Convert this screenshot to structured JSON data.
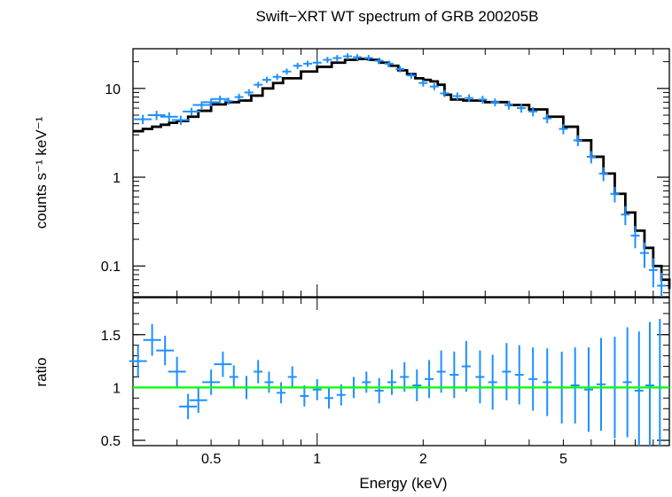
{
  "chart_data": [
    {
      "panel": "spectrum",
      "type": "scatter",
      "title": "Swift−XRT WT spectrum of GRB 200205B",
      "ylabel": "counts s⁻¹ keV⁻¹",
      "xscale": "log",
      "yscale": "log",
      "xlim": [
        0.3,
        10
      ],
      "ylim": [
        0.045,
        28
      ],
      "yticks": [
        {
          "value": 10,
          "label": "10"
        },
        {
          "value": 1,
          "label": "1"
        },
        {
          "value": 0.1,
          "label": "0.1"
        }
      ],
      "series": [
        {
          "type": "errorbar",
          "color": "#1e90ff",
          "x": [
            0.32,
            0.35,
            0.38,
            0.41,
            0.44,
            0.47,
            0.5,
            0.53,
            0.56,
            0.6,
            0.64,
            0.68,
            0.72,
            0.77,
            0.82,
            0.88,
            0.94,
            1.0,
            1.07,
            1.14,
            1.22,
            1.3,
            1.4,
            1.5,
            1.6,
            1.72,
            1.85,
            2.0,
            2.15,
            2.3,
            2.5,
            2.7,
            2.95,
            3.2,
            3.5,
            3.8,
            4.1,
            4.5,
            5.0,
            5.5,
            6.0,
            6.5,
            7.0,
            7.5,
            8.0,
            8.5,
            9.0,
            9.5
          ],
          "y": [
            4.5,
            5.0,
            4.8,
            4.4,
            5.5,
            6.5,
            7.0,
            7.6,
            7.2,
            8.0,
            9.0,
            11.0,
            12.5,
            13.5,
            15.5,
            18.0,
            19.0,
            19.5,
            21.0,
            22.0,
            23.0,
            22.5,
            22.0,
            20.5,
            19.0,
            16.5,
            14.0,
            11.5,
            10.5,
            8.8,
            8.2,
            7.8,
            7.5,
            7.0,
            6.5,
            6.0,
            5.5,
            4.6,
            3.5,
            2.6,
            1.7,
            1.1,
            0.65,
            0.38,
            0.22,
            0.14,
            0.09,
            0.06
          ],
          "yerr_frac": [
            0.12,
            0.12,
            0.12,
            0.12,
            0.1,
            0.1,
            0.1,
            0.09,
            0.09,
            0.09,
            0.09,
            0.08,
            0.08,
            0.08,
            0.08,
            0.08,
            0.08,
            0.08,
            0.08,
            0.08,
            0.08,
            0.08,
            0.08,
            0.08,
            0.08,
            0.08,
            0.08,
            0.09,
            0.09,
            0.09,
            0.1,
            0.1,
            0.1,
            0.1,
            0.11,
            0.11,
            0.12,
            0.12,
            0.13,
            0.14,
            0.16,
            0.18,
            0.2,
            0.24,
            0.28,
            0.32,
            0.36,
            0.4
          ]
        },
        {
          "type": "model-step",
          "color": "#000000",
          "x": [
            0.3,
            0.32,
            0.34,
            0.36,
            0.38,
            0.4,
            0.43,
            0.46,
            0.5,
            0.55,
            0.6,
            0.65,
            0.7,
            0.75,
            0.8,
            0.9,
            1.0,
            1.1,
            1.2,
            1.3,
            1.4,
            1.5,
            1.6,
            1.7,
            1.8,
            1.9,
            2.0,
            2.1,
            2.2,
            2.3,
            2.4,
            2.6,
            3.0,
            3.5,
            4.0,
            4.5,
            5.0,
            5.5,
            6.0,
            6.5,
            7.0,
            7.5,
            8.0,
            8.5,
            9.0,
            9.5,
            10.0
          ],
          "y": [
            3.3,
            3.5,
            3.7,
            3.9,
            4.1,
            4.3,
            4.8,
            5.6,
            6.6,
            7.0,
            7.3,
            8.3,
            10.0,
            11.5,
            13.0,
            15.5,
            17.5,
            19.5,
            21.0,
            21.5,
            21.0,
            19.5,
            18.0,
            16.0,
            14.5,
            13.0,
            12.5,
            12.0,
            11.0,
            8.5,
            7.5,
            7.3,
            7.0,
            6.5,
            5.8,
            4.8,
            3.7,
            2.6,
            1.7,
            1.1,
            0.65,
            0.4,
            0.25,
            0.16,
            0.1,
            0.07,
            0.055
          ]
        }
      ]
    },
    {
      "panel": "ratio",
      "type": "scatter",
      "xlabel": "Energy (keV)",
      "ylabel": "ratio",
      "xscale": "log",
      "xlim": [
        0.3,
        10
      ],
      "ylim": [
        0.45,
        1.85
      ],
      "xticks": [
        {
          "value": 0.5,
          "label": "0.5"
        },
        {
          "value": 1,
          "label": "1"
        },
        {
          "value": 2,
          "label": "2"
        },
        {
          "value": 5,
          "label": "5"
        }
      ],
      "yticks": [
        {
          "value": 0.5,
          "label": "0.5"
        },
        {
          "value": 1,
          "label": "1"
        },
        {
          "value": 1.5,
          "label": "1.5"
        }
      ],
      "reference_line": {
        "y": 1,
        "color": "#00ff00"
      },
      "series": [
        {
          "type": "errorbar",
          "color": "#1e90ff",
          "x": [
            0.31,
            0.34,
            0.37,
            0.4,
            0.43,
            0.46,
            0.5,
            0.54,
            0.58,
            0.63,
            0.68,
            0.73,
            0.79,
            0.85,
            0.92,
            1.0,
            1.08,
            1.17,
            1.27,
            1.38,
            1.5,
            1.63,
            1.77,
            1.92,
            2.08,
            2.25,
            2.45,
            2.65,
            2.9,
            3.15,
            3.45,
            3.75,
            4.1,
            4.5,
            4.95,
            5.4,
            5.9,
            6.4,
            7.0,
            7.6,
            8.2,
            8.8,
            9.4
          ],
          "y": [
            1.25,
            1.45,
            1.35,
            1.15,
            0.82,
            0.88,
            1.05,
            1.22,
            1.1,
            1.0,
            1.15,
            1.05,
            0.95,
            1.1,
            0.92,
            0.98,
            0.9,
            0.93,
            1.0,
            1.05,
            0.97,
            1.05,
            1.1,
            1.02,
            1.08,
            1.15,
            1.12,
            1.2,
            1.1,
            1.05,
            1.15,
            1.12,
            1.08,
            1.05,
            1.0,
            1.02,
            0.98,
            1.03,
            1.0,
            1.05,
            0.97,
            1.02,
            1.0
          ],
          "yerr": [
            0.15,
            0.15,
            0.14,
            0.14,
            0.12,
            0.12,
            0.12,
            0.12,
            0.11,
            0.11,
            0.11,
            0.1,
            0.1,
            0.1,
            0.1,
            0.1,
            0.1,
            0.1,
            0.1,
            0.1,
            0.12,
            0.12,
            0.14,
            0.15,
            0.18,
            0.2,
            0.22,
            0.24,
            0.25,
            0.26,
            0.27,
            0.28,
            0.3,
            0.32,
            0.34,
            0.36,
            0.4,
            0.44,
            0.48,
            0.52,
            0.56,
            0.6,
            0.65
          ]
        }
      ]
    }
  ]
}
